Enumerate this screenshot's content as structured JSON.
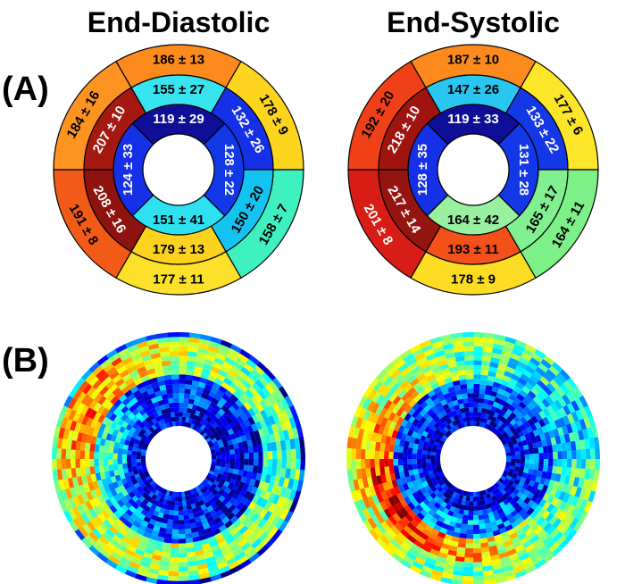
{
  "titles": {
    "diastolic": "End-Diastolic",
    "systolic": "End-Systolic"
  },
  "panel_labels": {
    "a": "(A)",
    "b": "(B)"
  },
  "bullseye_diastolic": {
    "rings": {
      "outer": [
        {
          "value": "186 ± 13",
          "color": "#fd8a1c"
        },
        {
          "value": "178 ± 9",
          "color": "#fdd51e"
        },
        {
          "value": "158 ± 7",
          "color": "#3ff0c0"
        },
        {
          "value": "177 ± 11",
          "color": "#fde02a"
        },
        {
          "value": "191 ± 8",
          "color": "#f25a17"
        },
        {
          "value": "184 ± 16",
          "color": "#fd9320"
        }
      ],
      "mid": [
        {
          "value": "155 ± 27",
          "color": "#38e4f0"
        },
        {
          "value": "132 ± 26",
          "color": "#1530e6"
        },
        {
          "value": "150 ± 20",
          "color": "#14c3f0"
        },
        {
          "value": "179 ± 13",
          "color": "#fcd21e"
        },
        {
          "value": "208 ± 16",
          "color": "#8e120d"
        },
        {
          "value": "207 ± 10",
          "color": "#a51a10"
        }
      ],
      "apical": [
        {
          "value": "119 ± 29",
          "color": "#0e0e96"
        },
        {
          "value": "128 ± 22",
          "color": "#1238e8"
        },
        {
          "value": "151 ± 41",
          "color": "#2ee1f0"
        },
        {
          "value": "124 ± 33",
          "color": "#1530e6"
        }
      ]
    }
  },
  "bullseye_systolic": {
    "rings": {
      "outer": [
        {
          "value": "187 ± 10",
          "color": "#fd8a1c"
        },
        {
          "value": "177 ± 6",
          "color": "#fde52a"
        },
        {
          "value": "164 ± 11",
          "color": "#7ef088"
        },
        {
          "value": "178 ± 9",
          "color": "#fddc24"
        },
        {
          "value": "201 ± 8",
          "color": "#d81c16"
        },
        {
          "value": "192 ± 20",
          "color": "#f04018"
        }
      ],
      "mid": [
        {
          "value": "147 ± 26",
          "color": "#28c6f0"
        },
        {
          "value": "133 ± 22",
          "color": "#1538e6"
        },
        {
          "value": "165 ± 17",
          "color": "#80f090"
        },
        {
          "value": "193 ± 11",
          "color": "#f4501a"
        },
        {
          "value": "217 ± 14",
          "color": "#941410"
        },
        {
          "value": "218 ± 10",
          "color": "#a01410"
        }
      ],
      "apical": [
        {
          "value": "119 ± 33",
          "color": "#0e0e96"
        },
        {
          "value": "131 ± 28",
          "color": "#1238e8"
        },
        {
          "value": "164 ± 42",
          "color": "#98f0a0"
        },
        {
          "value": "128 ± 35",
          "color": "#1530e6"
        }
      ]
    }
  },
  "colors": {
    "background": "#ffffff",
    "outline": "#000000",
    "light_text": "#ffffff",
    "dark_text": "#000000"
  }
}
